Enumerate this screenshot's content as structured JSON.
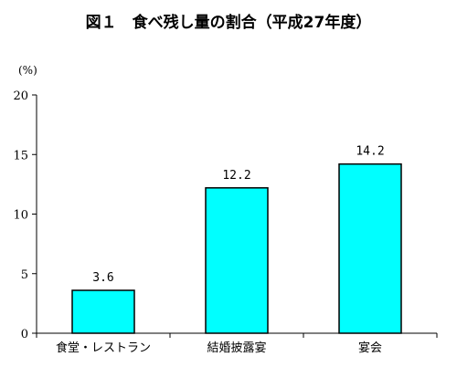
{
  "chart_data": {
    "type": "bar",
    "title": "図１　食べ残し量の割合（平成27年度）",
    "ylabel": "(%)",
    "xlabel": "",
    "categories": [
      "食堂・レストラン",
      "結婚披露宴",
      "宴会"
    ],
    "values": [
      3.6,
      12.2,
      14.2
    ],
    "data_labels": [
      "3.6",
      "12.2",
      "14.2"
    ],
    "ylim": [
      0,
      20
    ],
    "yticks": [
      0,
      5,
      10,
      15,
      20
    ],
    "grid": false,
    "legend": "none",
    "bar_color": "#00ffff",
    "bar_edge_color": "#000000"
  }
}
